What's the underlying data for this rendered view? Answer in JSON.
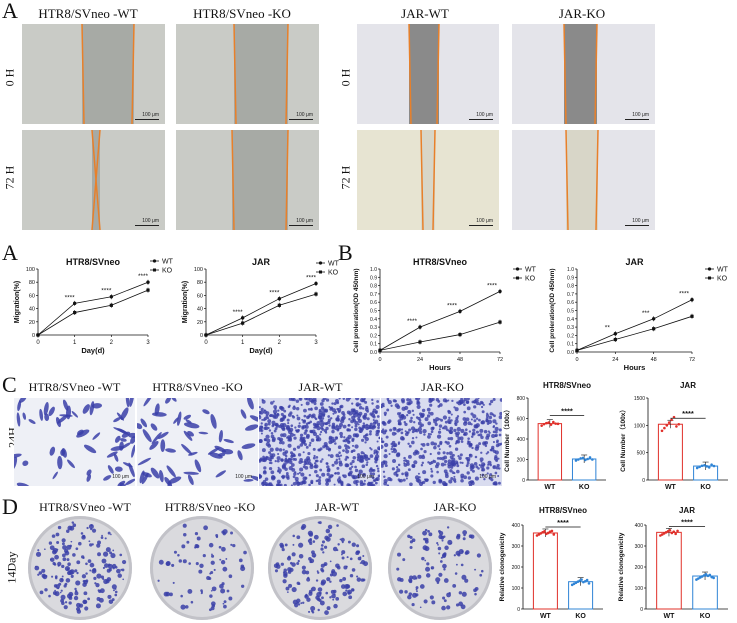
{
  "panelA": {
    "letter": "A",
    "columns": [
      "HTR8/SVneo -WT",
      "HTR8/SVneo -KO",
      "JAR-WT",
      "JAR-KO"
    ],
    "rows": [
      "0 H",
      "72 H"
    ],
    "scale": "100 μm"
  },
  "panelA2": {
    "letter": "A",
    "charts": [
      {
        "title": "HTR8/SVneo",
        "ylabel": "Migration(%)",
        "xlabel": "Day(d)",
        "xticks": [
          "0",
          "1",
          "2",
          "3"
        ],
        "yticks": [
          "0",
          "20",
          "40",
          "60",
          "80",
          "100"
        ],
        "legend": [
          "WT",
          "KO"
        ],
        "sig": [
          "****",
          "****",
          "****"
        ],
        "chart_data": {
          "type": "line",
          "x": [
            0,
            1,
            2,
            3
          ],
          "ylim": [
            0,
            100
          ],
          "series": [
            {
              "name": "WT",
              "values": [
                0,
                48,
                58,
                80
              ]
            },
            {
              "name": "KO",
              "values": [
                0,
                34,
                45,
                68
              ]
            }
          ]
        }
      },
      {
        "title": "JAR",
        "ylabel": "Migration(%)",
        "xlabel": "Day(d)",
        "xticks": [
          "0",
          "1",
          "2",
          "3"
        ],
        "yticks": [
          "0",
          "20",
          "40",
          "60",
          "80",
          "100"
        ],
        "legend": [
          "WT",
          "KO"
        ],
        "sig": [
          "****",
          "****",
          "****"
        ],
        "chart_data": {
          "type": "line",
          "x": [
            0,
            1,
            2,
            3
          ],
          "ylim": [
            0,
            100
          ],
          "series": [
            {
              "name": "WT",
              "values": [
                0,
                26,
                55,
                78
              ]
            },
            {
              "name": "KO",
              "values": [
                0,
                18,
                45,
                62
              ]
            }
          ]
        }
      }
    ]
  },
  "panelB": {
    "letter": "B",
    "charts": [
      {
        "title": "HTR8/SVneo",
        "ylabel": "Cell proleration(OD 450nm)",
        "xlabel": "Hours",
        "xticks": [
          "0",
          "24",
          "48",
          "72"
        ],
        "yticks": [
          "0.0",
          "0.1",
          "0.2",
          "0.3",
          "0.4",
          "0.5",
          "0.6",
          "0.7",
          "0.8",
          "0.9",
          "1.0"
        ],
        "legend": [
          "WT",
          "KO"
        ],
        "sig": [
          "****",
          "****",
          "****"
        ],
        "chart_data": {
          "type": "line",
          "x": [
            0,
            24,
            48,
            72
          ],
          "ylim": [
            0,
            1.0
          ],
          "series": [
            {
              "name": "WT",
              "values": [
                0.02,
                0.3,
                0.49,
                0.73
              ]
            },
            {
              "name": "KO",
              "values": [
                0.02,
                0.12,
                0.21,
                0.36
              ]
            }
          ]
        }
      },
      {
        "title": "JAR",
        "ylabel": "Cell proleration(OD 450nm)",
        "xlabel": "Hours",
        "xticks": [
          "0",
          "24",
          "48",
          "72"
        ],
        "yticks": [
          "0.0",
          "0.1",
          "0.2",
          "0.3",
          "0.4",
          "0.5",
          "0.6",
          "0.7",
          "0.8",
          "0.9",
          "1.0"
        ],
        "legend": [
          "WT",
          "KO"
        ],
        "sig": [
          "**",
          "***",
          "****"
        ],
        "chart_data": {
          "type": "line",
          "x": [
            0,
            24,
            48,
            72
          ],
          "ylim": [
            0,
            1.0
          ],
          "series": [
            {
              "name": "WT",
              "values": [
                0.02,
                0.22,
                0.4,
                0.63
              ]
            },
            {
              "name": "KO",
              "values": [
                0.02,
                0.15,
                0.28,
                0.43
              ]
            }
          ]
        }
      }
    ]
  },
  "panelC": {
    "letter": "C",
    "columns": [
      "HTR8/SVneo -WT",
      "HTR8/SVneo -KO",
      "JAR-WT",
      "JAR-KO"
    ],
    "row": "24H",
    "scale": "100 μm",
    "charts": [
      {
        "title": "HTR8/SVneo",
        "ylabel": "Cell Number（100x）",
        "yticks": [
          "0",
          "200",
          "400",
          "600",
          "800"
        ],
        "categories": [
          "WT",
          "KO"
        ],
        "sig": "****",
        "chart_data": {
          "type": "bar",
          "categories": [
            "WT",
            "KO"
          ],
          "values": [
            550,
            205
          ],
          "ylim": [
            0,
            800
          ],
          "points": [
            [
              530,
              545,
              555,
              560,
              540,
              565,
              550,
              548
            ],
            [
              190,
              200,
              210,
              215,
              195,
              205,
              220,
              200
            ]
          ]
        }
      },
      {
        "title": "JAR",
        "ylabel": "Cell Number（100x）",
        "yticks": [
          "0",
          "500",
          "1000",
          "1500"
        ],
        "categories": [
          "WT",
          "KO"
        ],
        "sig": "****",
        "chart_data": {
          "type": "bar",
          "categories": [
            "WT",
            "KO"
          ],
          "values": [
            1020,
            255
          ],
          "ylim": [
            0,
            1500
          ],
          "points": [
            [
              900,
              950,
              1000,
              1050,
              1100,
              1150,
              980,
              1020
            ],
            [
              220,
              240,
              260,
              270,
              250,
              230,
              280,
              255
            ]
          ]
        }
      }
    ]
  },
  "panelD": {
    "letter": "D",
    "columns": [
      "HTR8/SVneo -WT",
      "HTR8/SVneo -KO",
      "JAR-WT",
      "JAR-KO"
    ],
    "row": "14Day",
    "charts": [
      {
        "title": "HTR8/SVneo",
        "ylabel": "Relative clonogenicity",
        "yticks": [
          "0",
          "100",
          "200",
          "300",
          "400"
        ],
        "categories": [
          "WT",
          "KO"
        ],
        "sig": "****",
        "chart_data": {
          "type": "bar",
          "categories": [
            "WT",
            "KO"
          ],
          "values": [
            362,
            130
          ],
          "ylim": [
            0,
            400
          ],
          "points": [
            [
              350,
              355,
              360,
              365,
              370,
              358,
              362,
              368,
              372,
              355
            ],
            [
              115,
              120,
              125,
              130,
              135,
              140,
              128,
              132,
              138,
              122
            ]
          ]
        }
      },
      {
        "title": "JAR",
        "ylabel": "Relative clonogenicity",
        "yticks": [
          "0",
          "100",
          "200",
          "300",
          "400"
        ],
        "categories": [
          "WT",
          "KO"
        ],
        "sig": "****",
        "chart_data": {
          "type": "bar",
          "categories": [
            "WT",
            "KO"
          ],
          "values": [
            365,
            157
          ],
          "ylim": [
            0,
            400
          ],
          "points": [
            [
              350,
              355,
              360,
              365,
              370,
              375,
              362,
              368,
              358,
              372
            ],
            [
              140,
              145,
              150,
              155,
              160,
              165,
              158,
              162,
              152,
              148
            ]
          ]
        }
      }
    ]
  },
  "colors": {
    "wt": "#e0302a",
    "ko": "#2f84d6",
    "orange": "#e8802a",
    "stain": "#3a3fa8"
  }
}
